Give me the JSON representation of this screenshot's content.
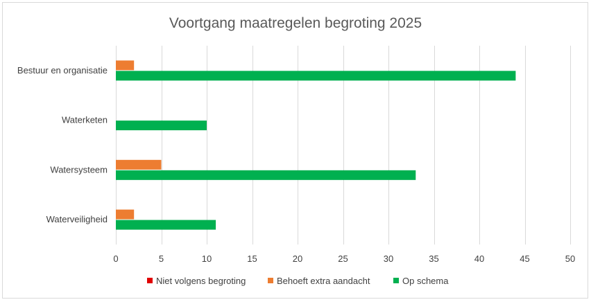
{
  "chart_data": {
    "type": "bar",
    "orientation": "horizontal",
    "title": "Voortgang maatregelen begroting 2025",
    "categories": [
      "Bestuur en organisatie",
      "Waterketen",
      "Watersysteem",
      "Waterveiligheid"
    ],
    "series": [
      {
        "name": "Niet volgens begroting",
        "color": "#e00000",
        "values": [
          0,
          0,
          0,
          0
        ]
      },
      {
        "name": "Behoeft extra aandacht",
        "color": "#ed7d31",
        "values": [
          2,
          0,
          5,
          2
        ]
      },
      {
        "name": "Op schema",
        "color": "#00b050",
        "values": [
          44,
          10,
          33,
          11
        ]
      }
    ],
    "xlim": [
      0,
      50
    ],
    "xticks": [
      0,
      5,
      10,
      15,
      20,
      25,
      30,
      35,
      40,
      45,
      50
    ],
    "grid": true,
    "legend_position": "bottom"
  }
}
